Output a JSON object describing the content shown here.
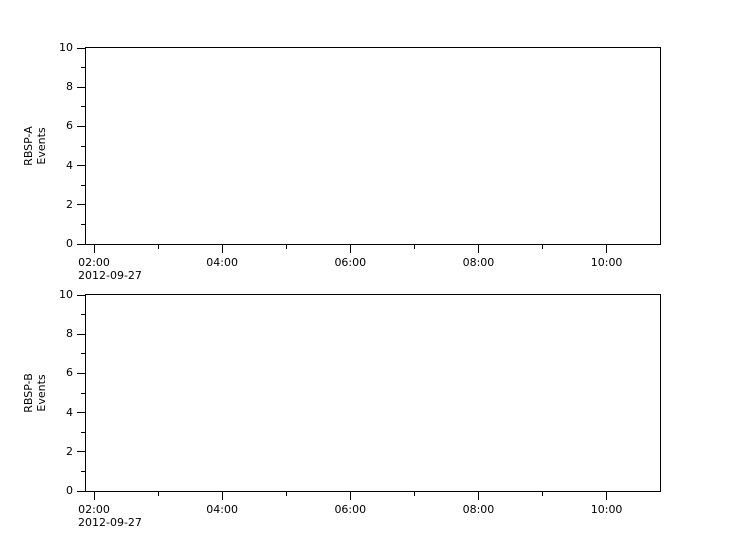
{
  "figure": {
    "background": "#ffffff"
  },
  "colors": {
    "axis": "#000000",
    "text": "#000000",
    "plot_background": "#ffffff"
  },
  "chart_data": [
    {
      "type": "line",
      "panel": "top",
      "title": "",
      "ylabel_lines": [
        "RBSP-A",
        "Events"
      ],
      "ylabel_text": "RBSP-A Events",
      "ylim": [
        0,
        10
      ],
      "grid": false,
      "legend": null,
      "series": [],
      "y_major_ticks": [
        {
          "value": 0,
          "label": "0"
        },
        {
          "value": 2,
          "label": "2"
        },
        {
          "value": 4,
          "label": "4"
        },
        {
          "value": 6,
          "label": "6"
        },
        {
          "value": 8,
          "label": "8"
        },
        {
          "value": 10,
          "label": "10"
        }
      ],
      "y_minor_ticks": [
        1,
        3,
        5,
        7,
        9
      ],
      "x_axis": {
        "range_minutes": [
          112.5,
          650
        ],
        "major_ticks": [
          {
            "minutes": 120,
            "label": "02:00"
          },
          {
            "minutes": 240,
            "label": "04:00"
          },
          {
            "minutes": 360,
            "label": "06:00"
          },
          {
            "minutes": 480,
            "label": "08:00"
          },
          {
            "minutes": 600,
            "label": "10:00"
          }
        ],
        "minor_ticks_minutes": [
          180,
          300,
          420,
          540
        ],
        "date_label": "2012-09-27"
      }
    },
    {
      "type": "line",
      "panel": "bottom",
      "title": "",
      "ylabel_lines": [
        "RBSP-B",
        "Events"
      ],
      "ylabel_text": "RBSP-B Events",
      "ylim": [
        0,
        10
      ],
      "grid": false,
      "legend": null,
      "series": [],
      "y_major_ticks": [
        {
          "value": 0,
          "label": "0"
        },
        {
          "value": 2,
          "label": "2"
        },
        {
          "value": 4,
          "label": "4"
        },
        {
          "value": 6,
          "label": "6"
        },
        {
          "value": 8,
          "label": "8"
        },
        {
          "value": 10,
          "label": "10"
        }
      ],
      "y_minor_ticks": [
        1,
        3,
        5,
        7,
        9
      ],
      "x_axis": {
        "range_minutes": [
          112.5,
          650
        ],
        "major_ticks": [
          {
            "minutes": 120,
            "label": "02:00"
          },
          {
            "minutes": 240,
            "label": "04:00"
          },
          {
            "minutes": 360,
            "label": "06:00"
          },
          {
            "minutes": 480,
            "label": "08:00"
          },
          {
            "minutes": 600,
            "label": "10:00"
          }
        ],
        "minor_ticks_minutes": [
          180,
          300,
          420,
          540
        ],
        "date_label": "2012-09-27"
      }
    }
  ]
}
